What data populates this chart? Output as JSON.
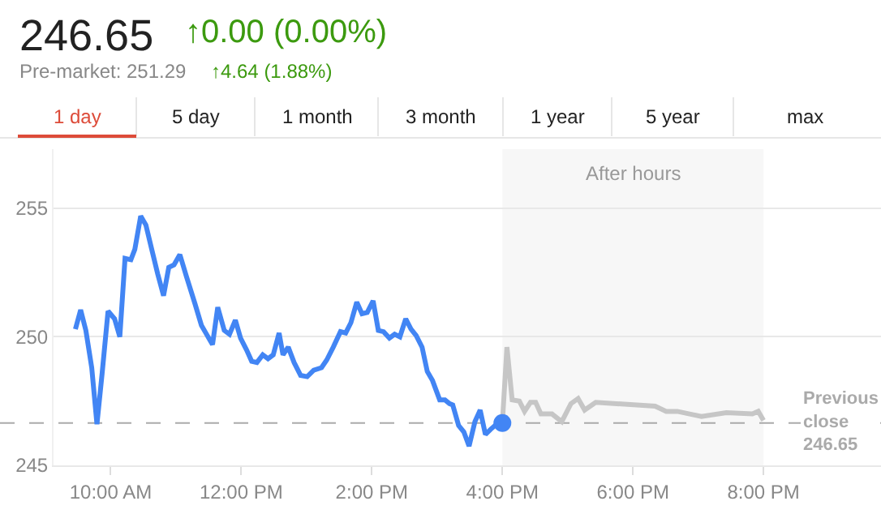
{
  "chart_data": {
    "type": "line",
    "title": "246.65",
    "subtitle": "Pre-market: 251.29",
    "annotations": [
      "↑0.00 (0.00%)",
      "↑4.64 (1.88%)",
      "1 day",
      "5 day",
      "1 month",
      "3 month",
      "1 year",
      "5 year",
      "max"
    ],
    "xlim": [
      9.125,
      21.8
    ],
    "xticks": [
      {
        "value": 10,
        "label": "10:00 AM"
      },
      {
        "value": 12,
        "label": "12:00 PM"
      },
      {
        "value": 14,
        "label": "2:00 PM"
      },
      {
        "value": 16,
        "label": "4:00 PM"
      },
      {
        "value": 18,
        "label": "6:00 PM"
      },
      {
        "value": 20,
        "label": "8:00 PM"
      }
    ],
    "ylim": [
      245,
      257.3
    ],
    "yticks": [
      245,
      250,
      255
    ],
    "grid": "y",
    "line_style": "solid",
    "series": [
      {
        "color": "#4285f4",
        "marker": "none",
        "x": [
          9.46,
          9.54,
          9.62,
          9.71,
          9.79,
          9.87,
          9.96,
          10.06,
          10.14,
          10.22,
          10.31,
          10.37,
          10.46,
          10.54,
          10.62,
          10.72,
          10.81,
          10.89,
          10.97,
          11.06,
          11.16,
          11.29,
          11.39,
          11.48,
          11.56,
          11.64,
          11.74,
          11.82,
          11.91,
          11.99,
          12.08,
          12.16,
          12.24,
          12.33,
          12.41,
          12.49,
          12.58,
          12.64,
          12.72,
          12.81,
          12.91,
          13.01,
          13.11,
          13.23,
          13.31,
          13.41,
          13.52,
          13.6,
          13.68,
          13.77,
          13.85,
          13.93,
          14.02,
          14.1,
          14.18,
          14.27,
          14.35,
          14.43,
          14.52,
          14.6,
          14.68,
          14.77,
          14.85,
          14.93,
          15.04,
          15.12,
          15.19,
          15.24,
          15.33,
          15.41,
          15.49,
          15.58,
          15.66,
          15.74,
          15.82,
          15.91,
          16.0
        ],
        "values": [
          250.3,
          251.05,
          250.25,
          248.8,
          246.6,
          248.6,
          251.0,
          250.7,
          250.0,
          253.05,
          253.0,
          253.4,
          254.7,
          254.35,
          253.5,
          252.45,
          251.6,
          252.7,
          252.8,
          253.2,
          252.35,
          251.3,
          250.45,
          250.05,
          249.7,
          251.15,
          250.25,
          250.1,
          250.65,
          249.95,
          249.5,
          249.05,
          249.0,
          249.3,
          249.15,
          249.3,
          250.15,
          249.3,
          249.6,
          249.0,
          248.5,
          248.45,
          248.7,
          248.8,
          249.1,
          249.6,
          250.2,
          250.15,
          250.55,
          251.35,
          250.9,
          250.95,
          251.4,
          250.25,
          250.2,
          249.95,
          250.1,
          250.0,
          250.7,
          250.3,
          250.05,
          249.6,
          248.65,
          248.3,
          247.55,
          247.55,
          247.4,
          247.35,
          246.55,
          246.3,
          245.75,
          246.7,
          247.15,
          246.2,
          246.4,
          246.6,
          246.65
        ]
      },
      {
        "color": "#c6c6c6",
        "marker": "none",
        "x": [
          16.0,
          16.07,
          16.15,
          16.26,
          16.34,
          16.43,
          16.51,
          16.59,
          16.76,
          16.91,
          17.05,
          17.16,
          17.26,
          17.43,
          18.34,
          18.51,
          18.68,
          19.05,
          19.43,
          19.83,
          19.92,
          20.0
        ],
        "values": [
          246.65,
          249.6,
          247.55,
          247.5,
          247.1,
          247.45,
          247.45,
          247.0,
          247.0,
          246.7,
          247.4,
          247.6,
          247.15,
          247.45,
          247.3,
          247.1,
          247.1,
          246.9,
          247.05,
          247.0,
          247.1,
          246.75
        ]
      },
      {
        "type": "scatter",
        "color": "#4285f4",
        "marker": "circle",
        "x": [
          16.0
        ],
        "values": [
          246.65
        ]
      }
    ],
    "bands": [
      {
        "axis": "x",
        "from": 16,
        "to": 20,
        "label": "After hours",
        "color": "#f7f7f7"
      }
    ],
    "ref_lines": [
      {
        "axis": "y",
        "value": 246.65,
        "label": "Previous\nclose\n246.65",
        "color": "#aaaaaa",
        "line_style": "dashed"
      }
    ]
  }
}
